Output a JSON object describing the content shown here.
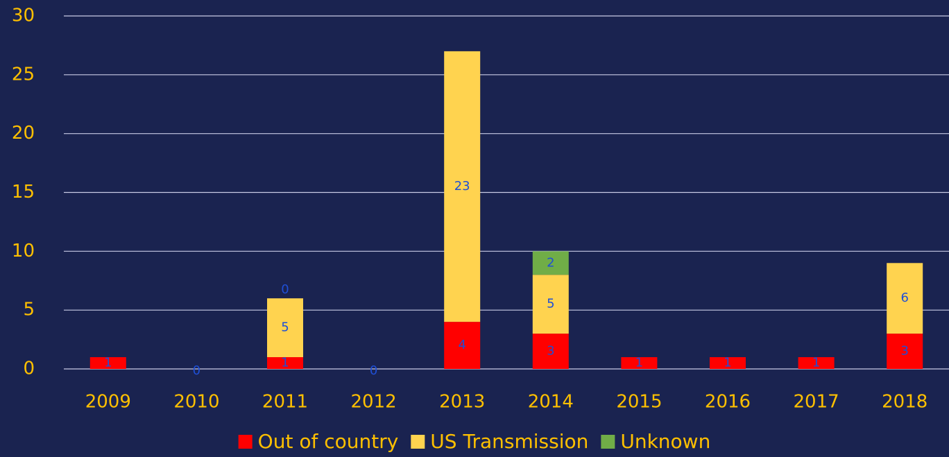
{
  "chart_data": {
    "type": "stacked_bar",
    "categories": [
      "2009",
      "2010",
      "2011",
      "2012",
      "2013",
      "2014",
      "2015",
      "2016",
      "2017",
      "2018"
    ],
    "series": [
      {
        "name": "Out of country",
        "color": "#ff0000",
        "values": [
          1,
          0,
          1,
          0,
          4,
          3,
          1,
          1,
          1,
          3
        ]
      },
      {
        "name": "US Transmission",
        "color": "#ffd34f",
        "values": [
          null,
          null,
          5,
          null,
          23,
          5,
          null,
          null,
          null,
          6
        ]
      },
      {
        "name": "Unknown",
        "color": "#70ad47",
        "values": [
          null,
          null,
          0,
          null,
          null,
          2,
          null,
          null,
          null,
          null
        ]
      }
    ],
    "ylim": [
      0,
      30
    ],
    "yticks": [
      0,
      5,
      10,
      15,
      20,
      25,
      30
    ],
    "grid": true,
    "legend": "bottom"
  }
}
